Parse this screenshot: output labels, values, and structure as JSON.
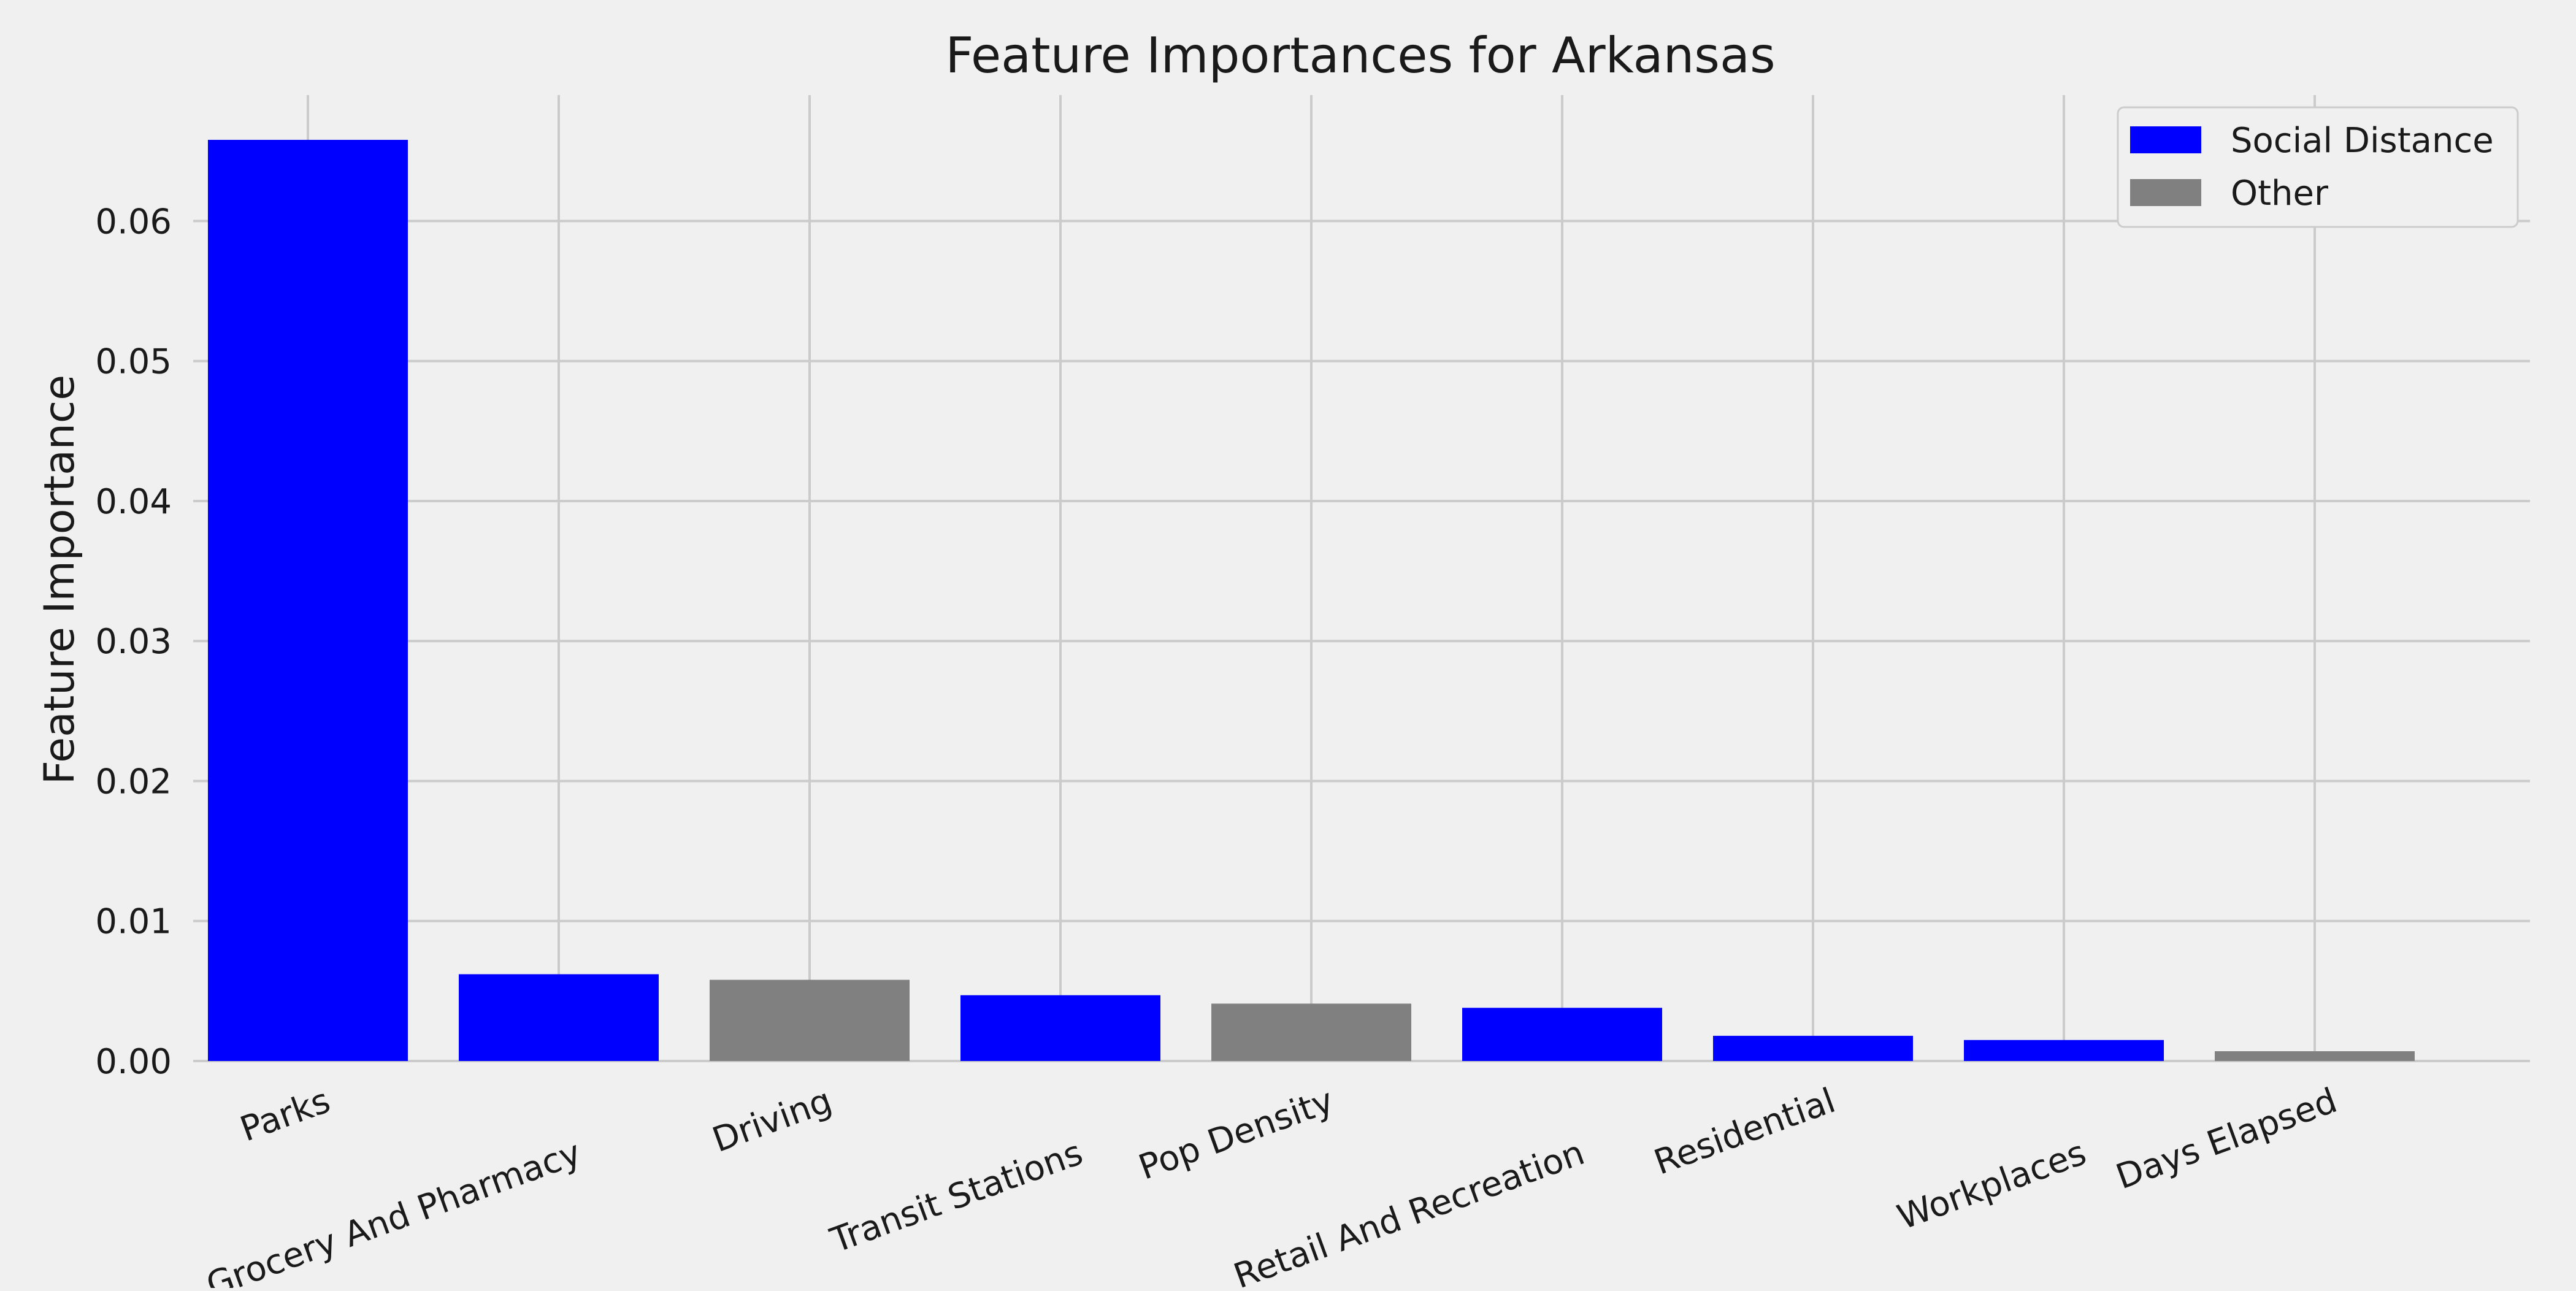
{
  "chart_data": {
    "type": "bar",
    "title": "Feature Importances for Arkansas",
    "xlabel": "",
    "ylabel": "Feature Importance",
    "ylim": [
      0,
      0.069
    ],
    "yticks": [
      "0.00",
      "0.01",
      "0.02",
      "0.03",
      "0.04",
      "0.05",
      "0.06"
    ],
    "grid": true,
    "legend_position": "top-right",
    "categories": [
      "Parks",
      "Grocery And Pharmacy",
      "Driving",
      "Transit Stations",
      "Pop Density",
      "Retail And Recreation",
      "Residential",
      "Workplaces",
      "Days Elapsed"
    ],
    "values": [
      0.0658,
      0.0062,
      0.0058,
      0.0047,
      0.0041,
      0.0038,
      0.0018,
      0.0015,
      0.0007
    ],
    "groups": [
      "Social Distance",
      "Social Distance",
      "Other",
      "Social Distance",
      "Other",
      "Social Distance",
      "Social Distance",
      "Social Distance",
      "Other"
    ],
    "legend": [
      {
        "name": "Social Distance",
        "color": "#0000ff"
      },
      {
        "name": "Other",
        "color": "#808080"
      }
    ]
  }
}
